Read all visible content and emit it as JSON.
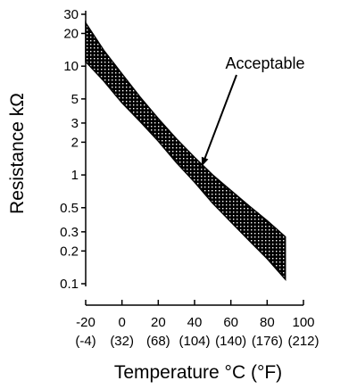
{
  "chart_data": {
    "type": "area",
    "xlabel": "Temperature °C (°F)",
    "ylabel": "Resistance kΩ",
    "y_scale": "log",
    "xlim": [
      -20,
      100
    ],
    "ylim": [
      0.1,
      30
    ],
    "x_ticks": [
      {
        "c": "-20",
        "f": "(-4)"
      },
      {
        "c": "0",
        "f": "(32)"
      },
      {
        "c": "20",
        "f": "(68)"
      },
      {
        "c": "40",
        "f": "(104)"
      },
      {
        "c": "60",
        "f": "(140)"
      },
      {
        "c": "80",
        "f": "(176)"
      },
      {
        "c": "100",
        "f": "(212)"
      }
    ],
    "y_ticks": [
      "30",
      "20",
      "10",
      "5",
      "3",
      "2",
      "1",
      "0.5",
      "0.3",
      "0.2",
      "0.1"
    ],
    "series": [
      {
        "x": [
          -20,
          -10,
          0,
          10,
          20,
          30,
          40,
          50,
          60,
          70,
          80,
          90
        ],
        "upper": [
          25,
          14,
          8.5,
          5.2,
          3.3,
          2.15,
          1.45,
          1.0,
          0.72,
          0.52,
          0.38,
          0.27
        ],
        "lower": [
          11,
          7.3,
          4.6,
          3.1,
          2.05,
          1.3,
          0.86,
          0.55,
          0.37,
          0.25,
          0.17,
          0.11
        ]
      }
    ],
    "annotations": [
      {
        "text": "Acceptable",
        "points_to": {
          "x": 44,
          "y": 1.2
        }
      }
    ],
    "grid": false,
    "colors": {
      "fill": "#000000",
      "background": "#ffffff"
    }
  }
}
